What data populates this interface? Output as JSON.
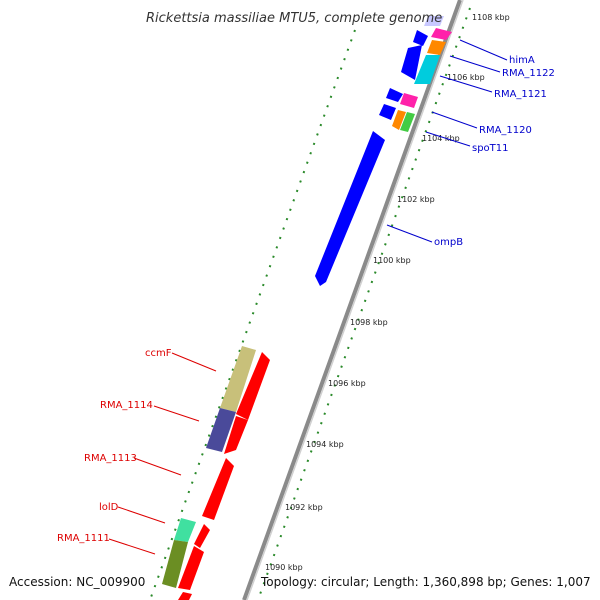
{
  "title": "Rickettsia massiliae MTU5, complete genome",
  "accession": "Accession: NC_009900",
  "summary": "Topology: circular; Length: 1,360,898 bp; Genes: 1,007",
  "colors": {
    "forward_label": "#0000cc",
    "reverse_label": "#dd0000",
    "backbone": "#8a8a8a",
    "tick": "#2a8a2a"
  },
  "kbp_labels": [
    "1108 kbp",
    "1106 kbp",
    "1104 kbp",
    "1102 kbp",
    "1100 kbp",
    "1098 kbp",
    "1096 kbp",
    "1094 kbp",
    "1092 kbp",
    "1090 kbp"
  ],
  "forward_genes": [
    {
      "label": "himA",
      "color": "#0000ff"
    },
    {
      "label": "RMA_1122",
      "color": "#00ccdd"
    },
    {
      "label": "RMA_1121",
      "color": "#0000ff"
    },
    {
      "label": "RMA_1120",
      "color": "#ff22aa"
    },
    {
      "label": "spoT11",
      "color": "#44cc44"
    },
    {
      "label": "ompB",
      "color": "#0000ff"
    }
  ],
  "reverse_genes": [
    {
      "label": "ccmF",
      "color": "#c8c07a"
    },
    {
      "label": "RMA_1114",
      "color": "#4a4a9a"
    },
    {
      "label": "RMA_1113",
      "color": "#ff0000"
    },
    {
      "label": "lolD",
      "color": "#ff0000"
    },
    {
      "label": "RMA_1111",
      "color": "#6b8e23"
    }
  ]
}
